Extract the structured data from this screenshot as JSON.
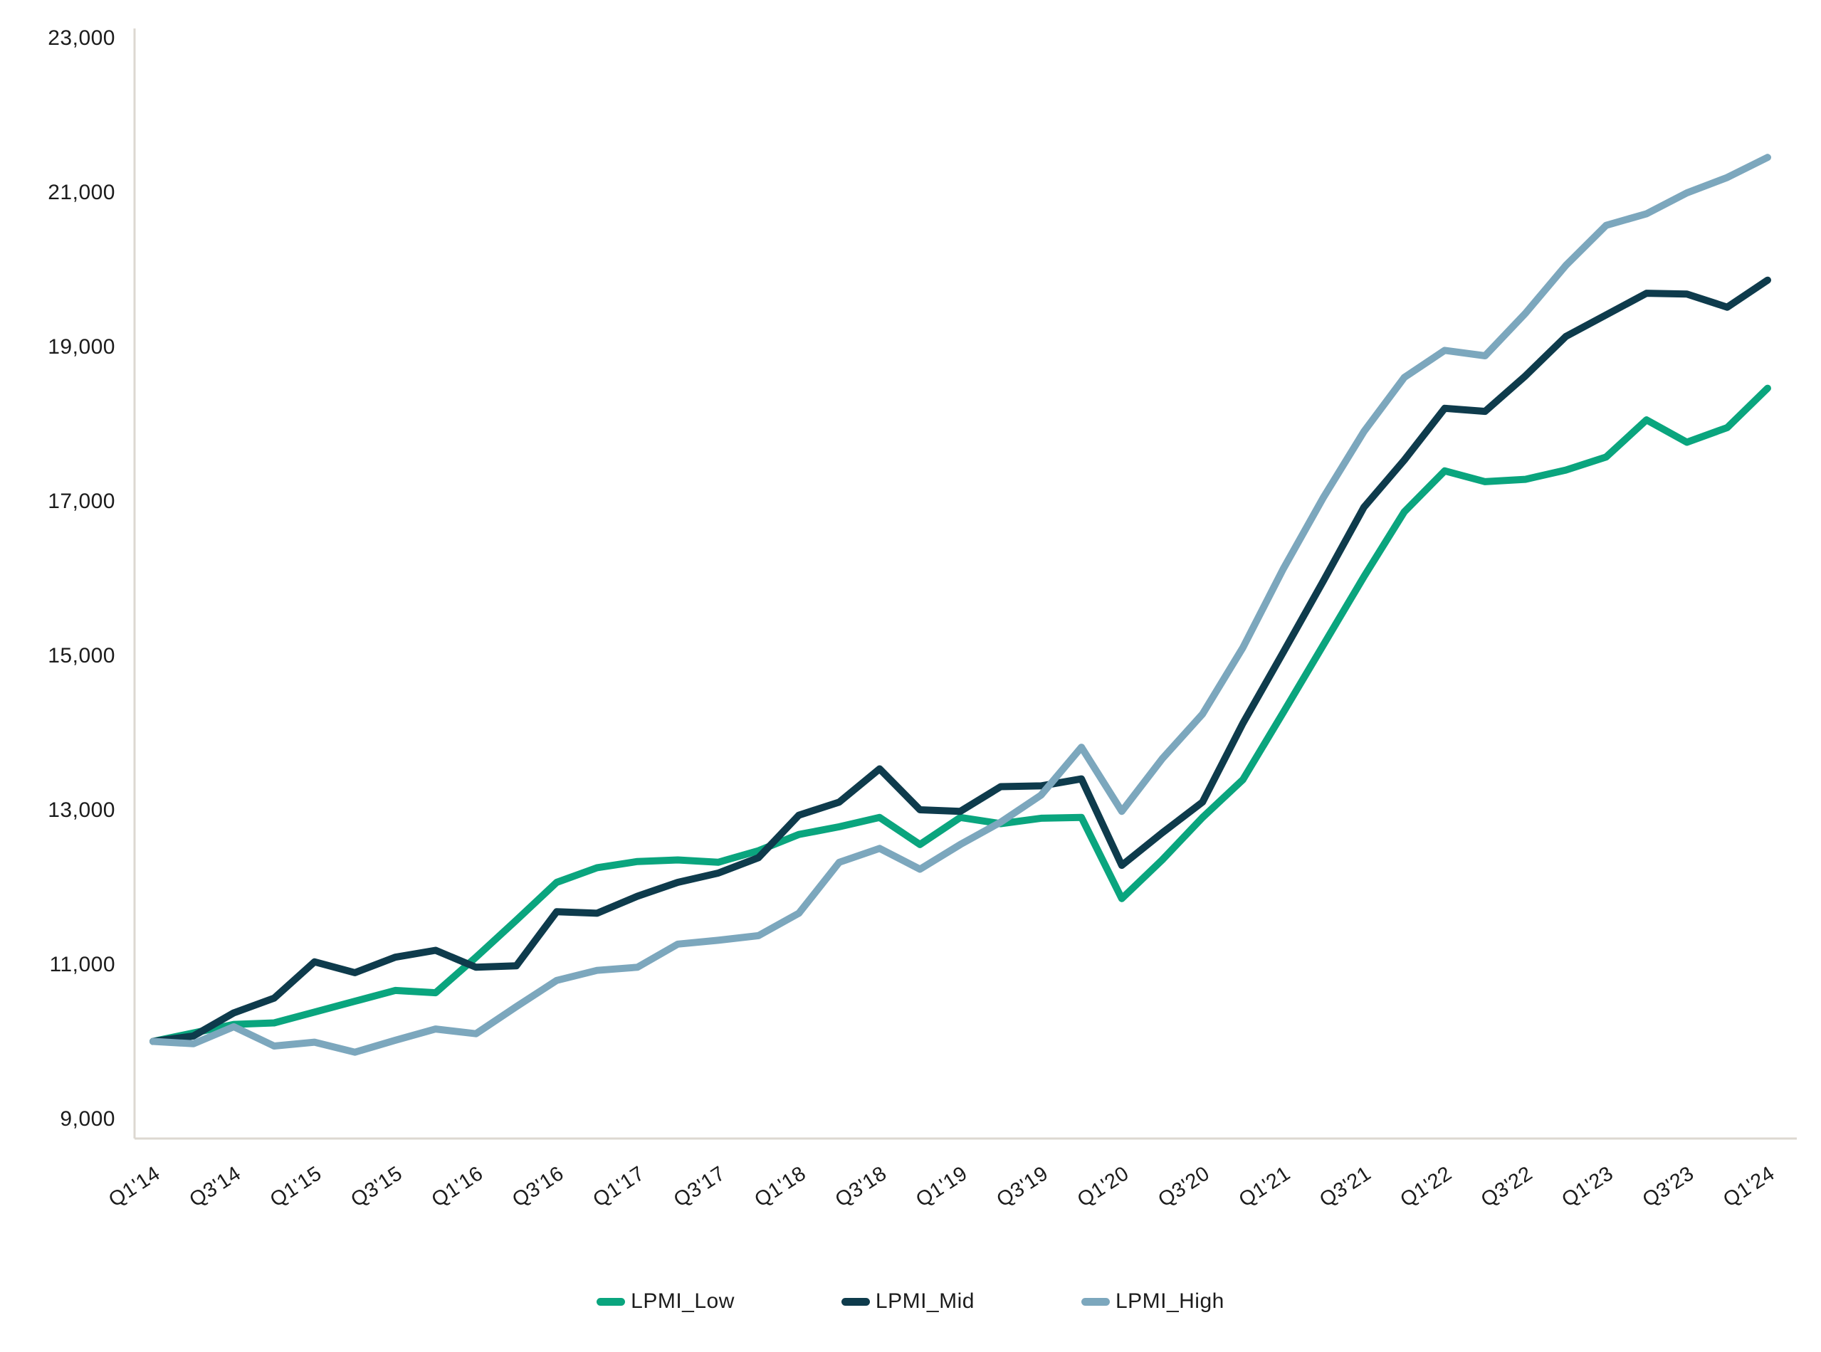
{
  "page": {
    "background": "#ffffff",
    "text_color": "#1c1c1c",
    "axis_line_color": "#ddd8d1"
  },
  "chart_data": {
    "type": "line",
    "title": "",
    "grid": "off",
    "legend_position": "bottom-center",
    "x_label_rotation_deg": -33,
    "categories": [
      "Q1'14",
      "Q2'14",
      "Q3'14",
      "Q4'14",
      "Q1'15",
      "Q2'15",
      "Q3'15",
      "Q4'15",
      "Q1'16",
      "Q2'16",
      "Q3'16",
      "Q4'16",
      "Q1'17",
      "Q2'17",
      "Q3'17",
      "Q4'17",
      "Q1'18",
      "Q2'18",
      "Q3'18",
      "Q4'18",
      "Q1'19",
      "Q2'19",
      "Q3'19",
      "Q4'19",
      "Q1'20",
      "Q2'20",
      "Q3'20",
      "Q4'20",
      "Q1'21",
      "Q2'21",
      "Q3'21",
      "Q4'21",
      "Q1'22",
      "Q2'22",
      "Q3'22",
      "Q4'22",
      "Q1'23",
      "Q2'23",
      "Q3'23",
      "Q4'23",
      "Q1'24"
    ],
    "x_tick_labels": [
      "Q1'14",
      "Q3'14",
      "Q1'15",
      "Q3'15",
      "Q1'16",
      "Q3'16",
      "Q1'17",
      "Q3'17",
      "Q1'18",
      "Q3'18",
      "Q1'19",
      "Q3'19",
      "Q1'20",
      "Q3'20",
      "Q1'21",
      "Q3'21",
      "Q1'22",
      "Q3'22",
      "Q1'23",
      "Q3'23",
      "Q1'24"
    ],
    "x_tick_every": 2,
    "y_axis": {
      "min": 9000,
      "max": 23000,
      "step": 2000,
      "tick_labels": [
        "9,000",
        "11,000",
        "13,000",
        "15,000",
        "17,000",
        "19,000",
        "21,000",
        "23,000"
      ]
    },
    "series": [
      {
        "name": "LPMI_Low",
        "color": "#0aa57e",
        "values": [
          10000,
          10110,
          10220,
          10240,
          10380,
          10520,
          10660,
          10630,
          11090,
          11570,
          12060,
          12250,
          12330,
          12350,
          12320,
          12470,
          12680,
          12780,
          12900,
          12550,
          12900,
          12820,
          12890,
          12900,
          11850,
          12350,
          12900,
          13390,
          14260,
          15140,
          16020,
          16860,
          17390,
          17250,
          17280,
          17400,
          17570,
          18050,
          17760,
          17950,
          18460
        ]
      },
      {
        "name": "LPMI_Mid",
        "color": "#0e3b4c",
        "values": [
          10000,
          10070,
          10370,
          10560,
          11030,
          10890,
          11090,
          11180,
          10960,
          10980,
          11680,
          11660,
          11880,
          12060,
          12180,
          12380,
          12930,
          13100,
          13530,
          13000,
          12980,
          13300,
          13310,
          13400,
          12280,
          12700,
          13100,
          14120,
          15040,
          15970,
          16920,
          17530,
          18200,
          18160,
          18620,
          19130,
          19410,
          19690,
          19680,
          19510,
          19860
        ]
      },
      {
        "name": "LPMI_High",
        "color": "#7ca7bd",
        "values": [
          10000,
          9970,
          10190,
          9940,
          9990,
          9860,
          10015,
          10160,
          10100,
          10450,
          10790,
          10920,
          10960,
          11260,
          11310,
          11370,
          11660,
          12320,
          12500,
          12230,
          12550,
          12840,
          13190,
          13810,
          12980,
          13660,
          14240,
          15100,
          16120,
          17050,
          17900,
          18600,
          18950,
          18880,
          19430,
          20050,
          20570,
          20720,
          20990,
          21190,
          21450
        ]
      }
    ]
  },
  "legend": {
    "items": [
      {
        "label": "LPMI_Low",
        "color": "#0aa57e"
      },
      {
        "label": "LPMI_Mid",
        "color": "#0e3b4c"
      },
      {
        "label": "LPMI_High",
        "color": "#7ca7bd"
      }
    ]
  }
}
